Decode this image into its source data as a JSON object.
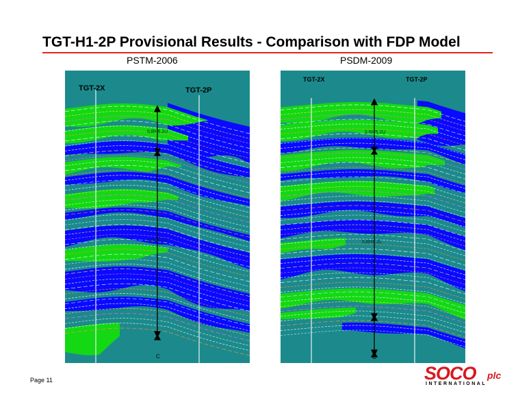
{
  "title": "TGT-H1-2P Provisional Results  - Comparison with FDP Model",
  "panels": {
    "left": {
      "subtitle": "PSTM-2006",
      "well_a": "TGT-2X",
      "well_b": "TGT-2P",
      "zone_upper": "ILBH5.2U",
      "zone_lower": "ILBH5.2L",
      "base": "C"
    },
    "right": {
      "subtitle": "PSDM-2009",
      "well_a": "TGT-2X",
      "well_b": "TGT-2P",
      "zone_upper": "ILBH5.2U",
      "zone_lower": "ILBH5.2L",
      "base": "C"
    }
  },
  "footer": {
    "page": "Page 11"
  },
  "logo": {
    "name": "SOCO",
    "suffix": "plc",
    "sub": "INTERNATIONAL"
  },
  "colors": {
    "teal": "#1c8a8c",
    "blue": "#0a0aff",
    "green": "#14d814",
    "accent": "#e2231a"
  }
}
